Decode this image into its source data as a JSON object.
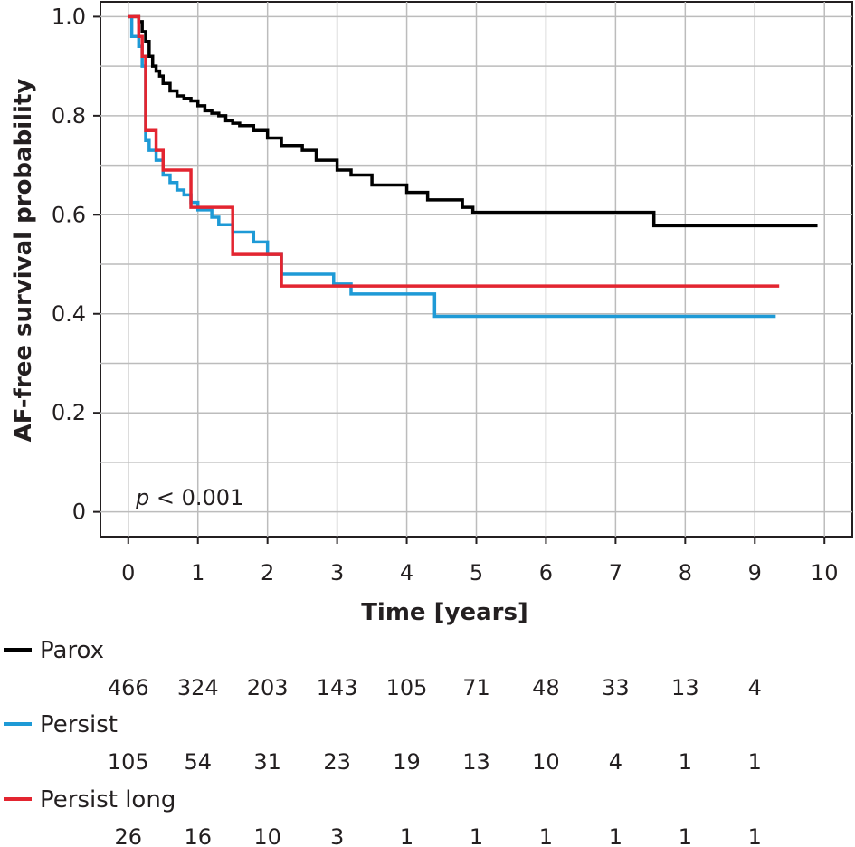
{
  "chart_data": {
    "type": "line",
    "subtype": "kaplan-meier step",
    "xlabel": "Time [years]",
    "ylabel": "AF-free survival probability",
    "xlim": [
      -0.4,
      10.4
    ],
    "ylim": [
      -0.05,
      1.03
    ],
    "xticks": [
      "0",
      "1",
      "2",
      "3",
      "4",
      "5",
      "6",
      "7",
      "8",
      "9",
      "10"
    ],
    "yticks": [
      "0",
      "0.2",
      "0.4",
      "0.6",
      "0.8",
      "1.0"
    ],
    "grid": true,
    "annotation": {
      "italic": "p",
      "rest": " < 0.001"
    },
    "series": [
      {
        "name": "Parox",
        "color": "#000000",
        "x": [
          0,
          0.15,
          0.2,
          0.25,
          0.3,
          0.35,
          0.4,
          0.45,
          0.5,
          0.6,
          0.7,
          0.8,
          0.9,
          1.0,
          1.1,
          1.2,
          1.3,
          1.4,
          1.5,
          1.6,
          1.8,
          2.0,
          2.2,
          2.5,
          2.7,
          3.0,
          3.2,
          3.5,
          4.0,
          4.3,
          4.8,
          4.95,
          7.55,
          9.9
        ],
        "y": [
          1.0,
          0.99,
          0.97,
          0.95,
          0.92,
          0.9,
          0.89,
          0.88,
          0.865,
          0.85,
          0.84,
          0.835,
          0.83,
          0.82,
          0.81,
          0.805,
          0.8,
          0.79,
          0.785,
          0.78,
          0.77,
          0.755,
          0.74,
          0.73,
          0.71,
          0.69,
          0.68,
          0.66,
          0.645,
          0.63,
          0.615,
          0.605,
          0.578,
          0.578
        ]
      },
      {
        "name": "Persist",
        "color": "#1e9ad6",
        "x": [
          0,
          0.05,
          0.15,
          0.2,
          0.25,
          0.3,
          0.4,
          0.5,
          0.6,
          0.7,
          0.8,
          0.9,
          1.0,
          1.2,
          1.3,
          1.5,
          1.8,
          2.0,
          2.2,
          2.7,
          2.95,
          3.2,
          4.3,
          4.4,
          9.3
        ],
        "y": [
          1.0,
          0.96,
          0.94,
          0.9,
          0.75,
          0.73,
          0.71,
          0.68,
          0.665,
          0.65,
          0.64,
          0.625,
          0.61,
          0.595,
          0.58,
          0.565,
          0.545,
          0.52,
          0.48,
          0.48,
          0.46,
          0.44,
          0.44,
          0.395,
          0.395
        ]
      },
      {
        "name": "Persist long",
        "color": "#e32530",
        "x": [
          0,
          0.15,
          0.2,
          0.25,
          0.4,
          0.5,
          0.9,
          1.5,
          2.2,
          9.35
        ],
        "y": [
          1.0,
          0.96,
          0.92,
          0.77,
          0.73,
          0.69,
          0.615,
          0.52,
          0.456,
          0.456
        ]
      }
    ]
  },
  "risk_table": {
    "rows": [
      {
        "name": "Parox",
        "color": "#000000",
        "counts": [
          "466",
          "324",
          "203",
          "143",
          "105",
          "71",
          "48",
          "33",
          "13",
          "4"
        ]
      },
      {
        "name": "Persist",
        "color": "#1e9ad6",
        "counts": [
          "105",
          "54",
          "31",
          "23",
          "19",
          "13",
          "10",
          "4",
          "1",
          "1"
        ]
      },
      {
        "name": "Persist long",
        "color": "#e32530",
        "counts": [
          "26",
          "16",
          "10",
          "3",
          "1",
          "1",
          "1",
          "1",
          "1",
          "1"
        ]
      }
    ]
  }
}
